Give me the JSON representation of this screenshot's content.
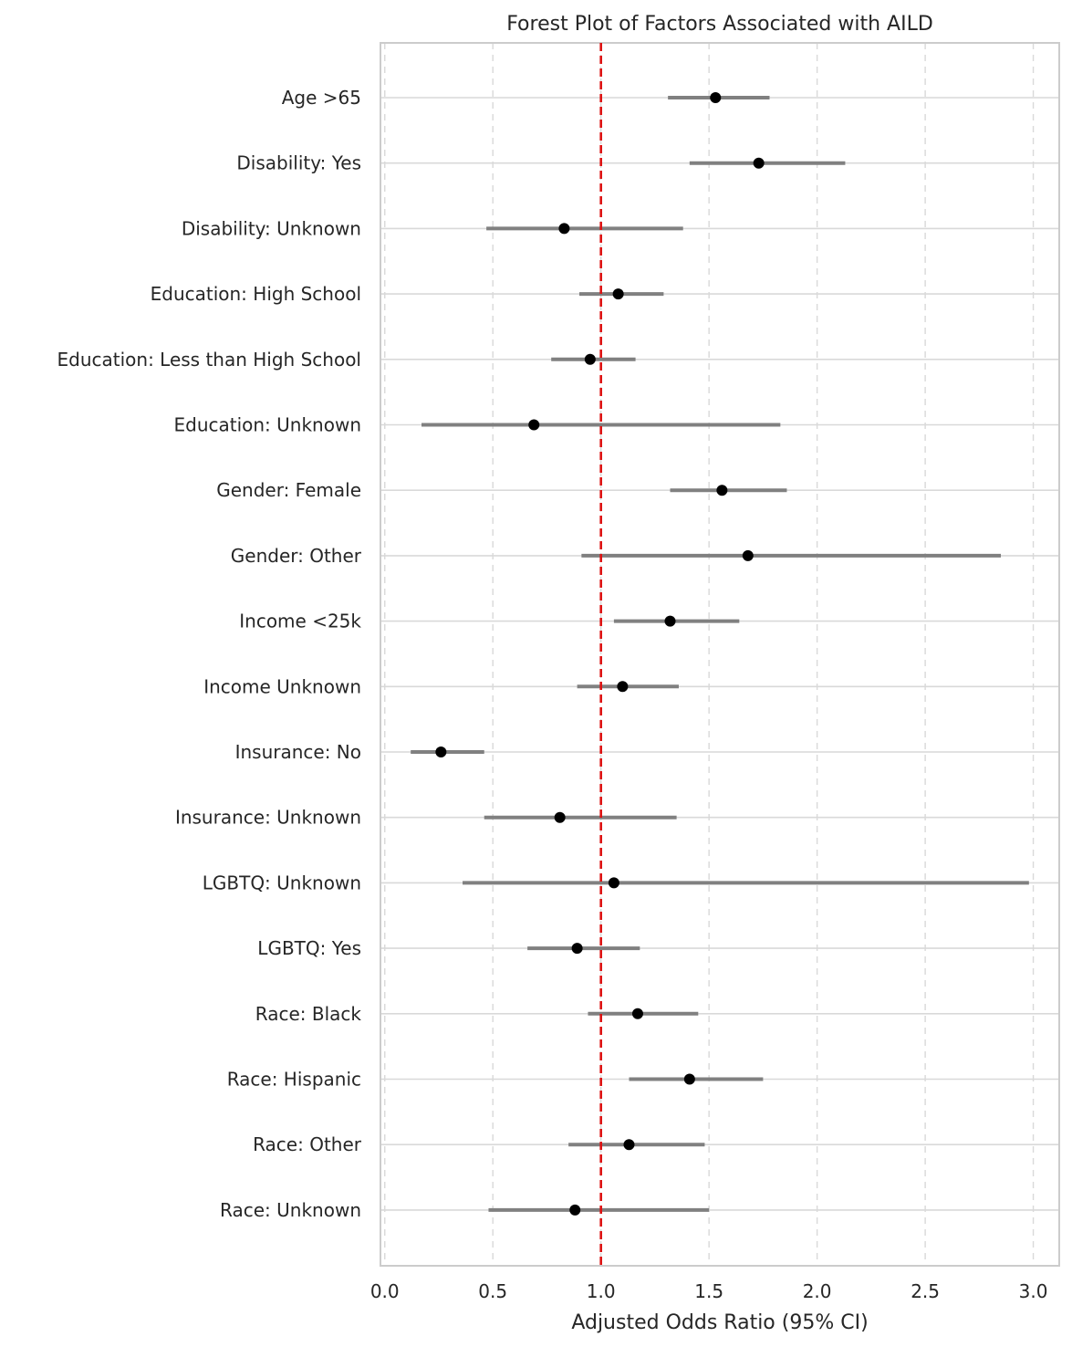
{
  "chart_data": {
    "type": "forest",
    "title": "Forest Plot of Factors Associated with AILD",
    "xlabel": "Adjusted Odds Ratio (95% CI)",
    "ylabel": "",
    "xlim": [
      -0.02,
      3.12
    ],
    "xticks": [
      0.0,
      0.5,
      1.0,
      1.5,
      2.0,
      2.5,
      3.0
    ],
    "xtick_labels": [
      "0.0",
      "0.5",
      "1.0",
      "1.5",
      "2.0",
      "2.5",
      "3.0"
    ],
    "reference_line": 1.0,
    "grid": true,
    "colors": {
      "point": "#000000",
      "ci": "#808080",
      "reference": "#dd1111",
      "grid": "#d9d9d9",
      "frame": "#cccccc"
    },
    "factors": [
      {
        "label": "Age >65",
        "or": 1.53,
        "lower": 1.31,
        "upper": 1.78
      },
      {
        "label": "Disability: Yes",
        "or": 1.73,
        "lower": 1.41,
        "upper": 2.13
      },
      {
        "label": "Disability: Unknown",
        "or": 0.83,
        "lower": 0.47,
        "upper": 1.38
      },
      {
        "label": "Education: High School",
        "or": 1.08,
        "lower": 0.9,
        "upper": 1.29
      },
      {
        "label": "Education: Less than High School",
        "or": 0.95,
        "lower": 0.77,
        "upper": 1.16
      },
      {
        "label": "Education: Unknown",
        "or": 0.69,
        "lower": 0.17,
        "upper": 1.83
      },
      {
        "label": "Gender: Female",
        "or": 1.56,
        "lower": 1.32,
        "upper": 1.86
      },
      {
        "label": "Gender: Other",
        "or": 1.68,
        "lower": 0.91,
        "upper": 2.85
      },
      {
        "label": "Income <25k",
        "or": 1.32,
        "lower": 1.06,
        "upper": 1.64
      },
      {
        "label": "Income Unknown",
        "or": 1.1,
        "lower": 0.89,
        "upper": 1.36
      },
      {
        "label": "Insurance: No",
        "or": 0.26,
        "lower": 0.12,
        "upper": 0.46
      },
      {
        "label": "Insurance: Unknown",
        "or": 0.81,
        "lower": 0.46,
        "upper": 1.35
      },
      {
        "label": "LGBTQ: Unknown",
        "or": 1.06,
        "lower": 0.36,
        "upper": 2.98
      },
      {
        "label": "LGBTQ: Yes",
        "or": 0.89,
        "lower": 0.66,
        "upper": 1.18
      },
      {
        "label": "Race: Black",
        "or": 1.17,
        "lower": 0.94,
        "upper": 1.45
      },
      {
        "label": "Race: Hispanic",
        "or": 1.41,
        "lower": 1.13,
        "upper": 1.75
      },
      {
        "label": "Race: Other",
        "or": 1.13,
        "lower": 0.85,
        "upper": 1.48
      },
      {
        "label": "Race: Unknown",
        "or": 0.88,
        "lower": 0.48,
        "upper": 1.5
      }
    ]
  }
}
